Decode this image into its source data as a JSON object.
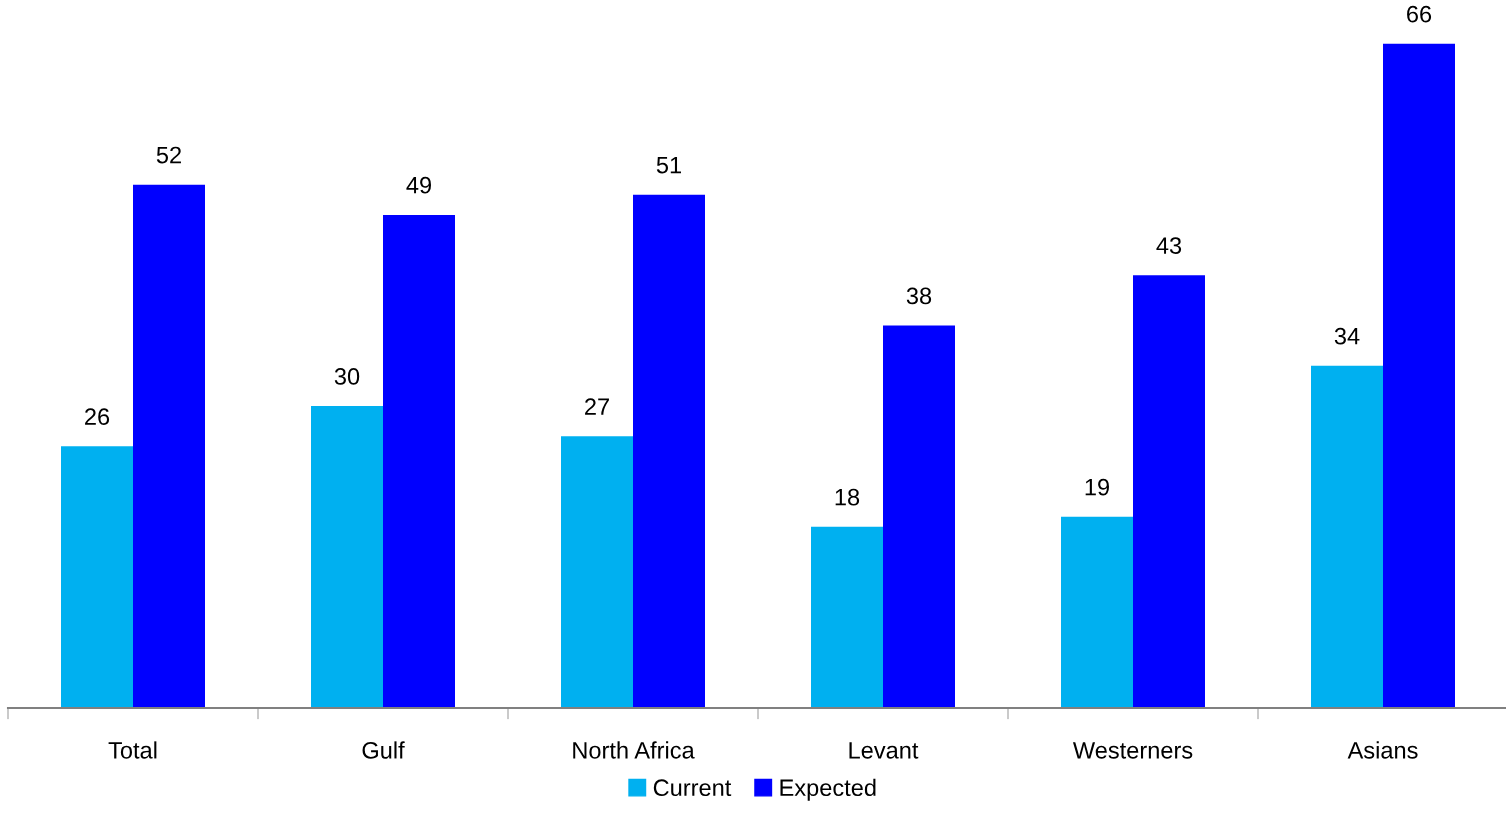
{
  "chart_data": {
    "type": "bar",
    "categories": [
      "Total",
      "Gulf",
      "North Africa",
      "Levant",
      "Westerners",
      "Asians"
    ],
    "series": [
      {
        "name": "Current",
        "color": "#00b0f0",
        "values": [
          26,
          30,
          27,
          18,
          19,
          34
        ]
      },
      {
        "name": "Expected",
        "color": "#0000ff",
        "values": [
          52,
          49,
          51,
          38,
          43,
          66
        ]
      }
    ],
    "data_labels": true,
    "legend": "bottom",
    "grid": false
  }
}
